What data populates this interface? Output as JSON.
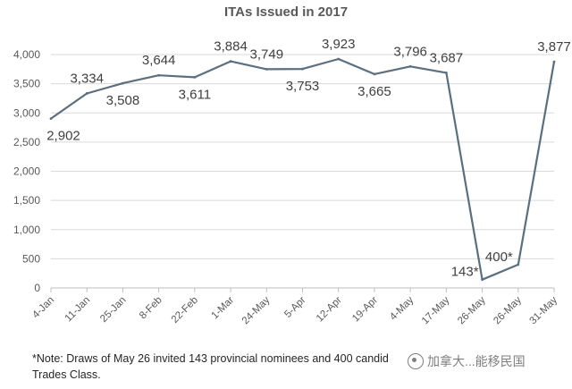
{
  "chart_data": {
    "type": "line",
    "title": "ITAs Issued in 2017",
    "xlabel": "",
    "ylabel": "",
    "ylim": [
      0,
      4000
    ],
    "yticks": [
      0,
      500,
      1000,
      1500,
      2000,
      2500,
      3000,
      3500,
      4000
    ],
    "ytick_labels": [
      "0",
      "500",
      "1,000",
      "1,500",
      "2,000",
      "2,500",
      "3,000",
      "3,500",
      "4,000"
    ],
    "categories": [
      "4-Jan",
      "11-Jan",
      "25-Jan",
      "8-Feb",
      "22-Feb",
      "1-Mar",
      "24-May",
      "5-Apr",
      "12-Apr",
      "19-Apr",
      "4-May",
      "17-May",
      "26-May",
      "26-May",
      "31-May"
    ],
    "values": [
      2902,
      3334,
      3508,
      3644,
      3611,
      3884,
      3749,
      3753,
      3923,
      3665,
      3796,
      3687,
      143,
      400,
      3877
    ],
    "data_labels": [
      "2,902",
      "3,334",
      "3,508",
      "3,644",
      "3,611",
      "3,884",
      "3,749",
      "3,753",
      "3,923",
      "3,665",
      "3,796",
      "3,687",
      "143*",
      "400*",
      "3,877"
    ],
    "grid": true,
    "legend": "none",
    "line_color": "#5b6f7e"
  },
  "footnote": "*Note: Draws of May 26 invited 143 provincial nominees and 400 candid",
  "footnote_line2": "Trades Class.",
  "watermark": "加拿大...能移民国"
}
